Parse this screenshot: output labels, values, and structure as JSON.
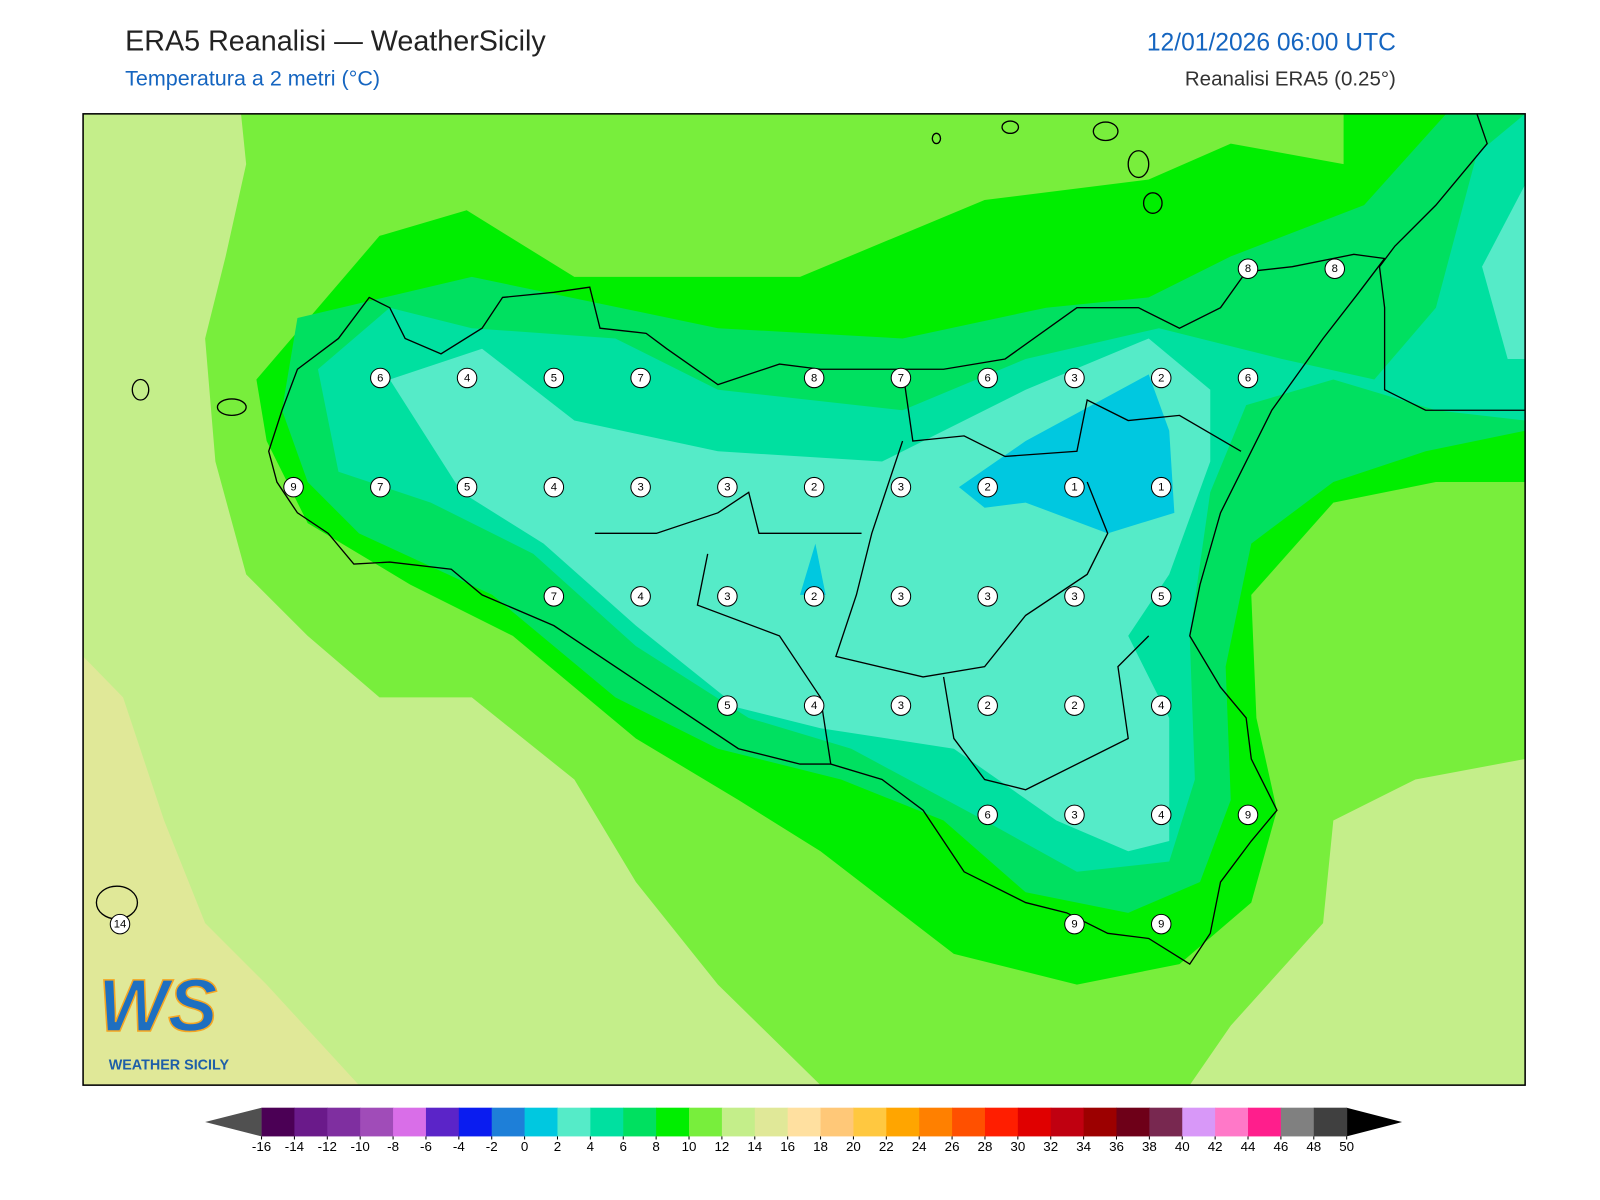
{
  "header": {
    "title": "ERA5 Reanalisi — WeatherSicily",
    "subtitle": "Temperatura a 2 metri (°C)",
    "datetime": "12/01/2026 06:00 UTC",
    "source": "Reanalisi ERA5 (0.25°)"
  },
  "station_grid": {
    "rows": [
      [
        null,
        null,
        null,
        null,
        null,
        null,
        null,
        null,
        null,
        null,
        null,
        null,
        null,
        8,
        8
      ],
      [
        null,
        null,
        null,
        6,
        4,
        5,
        7,
        null,
        8,
        7,
        6,
        3,
        2,
        6,
        null
      ],
      [
        null,
        null,
        9,
        7,
        5,
        4,
        3,
        3,
        2,
        3,
        2,
        1,
        1,
        null,
        null
      ],
      [
        null,
        null,
        null,
        null,
        null,
        7,
        4,
        3,
        2,
        3,
        3,
        3,
        5,
        null,
        null
      ],
      [
        null,
        null,
        null,
        null,
        null,
        null,
        null,
        5,
        4,
        3,
        2,
        2,
        4,
        null,
        null
      ],
      [
        null,
        null,
        null,
        null,
        null,
        null,
        null,
        null,
        null,
        null,
        6,
        3,
        4,
        9,
        null
      ],
      [
        14,
        null,
        null,
        null,
        null,
        null,
        null,
        null,
        null,
        null,
        null,
        9,
        9,
        null,
        null
      ]
    ]
  },
  "colorbar": {
    "ticks": [
      -16,
      -14,
      -12,
      -10,
      -8,
      -6,
      -4,
      -2,
      0,
      2,
      4,
      6,
      8,
      10,
      12,
      14,
      16,
      18,
      20,
      22,
      24,
      26,
      28,
      30,
      32,
      34,
      36,
      38,
      40,
      42,
      44,
      46,
      48,
      50
    ],
    "colors": [
      "#4b0055",
      "#6a1a8a",
      "#7f2fa0",
      "#a04cb8",
      "#d96ee8",
      "#5b24c8",
      "#0a1cf0",
      "#1e7fd8",
      "#00c8e0",
      "#55ebc8",
      "#00e0a0",
      "#00e060",
      "#00ee00",
      "#78ee3c",
      "#c4ee8a",
      "#e0e898",
      "#ffe0a0",
      "#ffc878",
      "#ffc840",
      "#ffa500",
      "#ff8000",
      "#ff5000",
      "#ff1e00",
      "#e00000",
      "#c00010",
      "#9c0000",
      "#6e0018",
      "#782850",
      "#d898f8",
      "#ff78c8",
      "#ff1e8c",
      "#808080",
      "#404040"
    ],
    "under_color": "#505050",
    "over_color": "#000000"
  },
  "logo": {
    "letters": "WS",
    "name": "WEATHER SICILY"
  }
}
